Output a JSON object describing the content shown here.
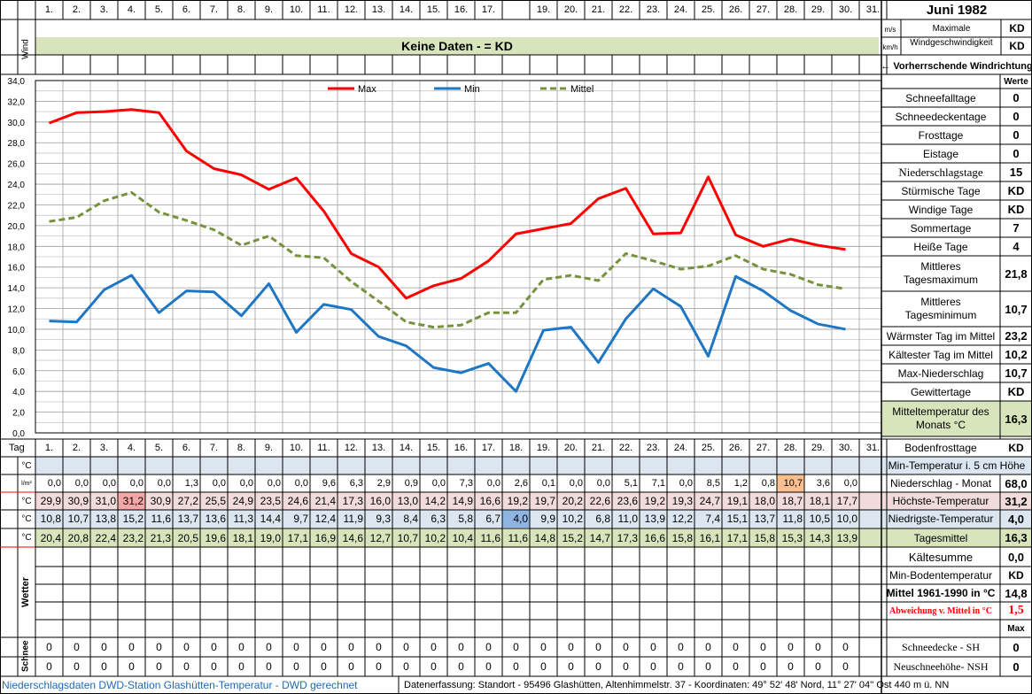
{
  "days_header": [
    "1.",
    "2.",
    "3.",
    "4.",
    "5.",
    "6.",
    "7.",
    "8.",
    "9.",
    "10.",
    "11.",
    "12.",
    "13.",
    "14.",
    "15.",
    "16.",
    "17.",
    "",
    "19.",
    "20.",
    "21.",
    "22.",
    "23.",
    "24.",
    "25.",
    "26.",
    "27.",
    "28.",
    "29.",
    "30.",
    "31."
  ],
  "days_row": [
    "1.",
    "2.",
    "3.",
    "4.",
    "5.",
    "6.",
    "7.",
    "8.",
    "9.",
    "10.",
    "11.",
    "12.",
    "13.",
    "14.",
    "15.",
    "16.",
    "17.",
    "18.",
    "19.",
    "20.",
    "21.",
    "22.",
    "23.",
    "24.",
    "25.",
    "26.",
    "27.",
    "28.",
    "29.",
    "30.",
    "31."
  ],
  "month_title": "Juni 1982",
  "wind": {
    "side_label": "Wind",
    "unit_ms": "m/s",
    "unit_kmh": "km/h",
    "banner": "Keine Daten -  = KD",
    "max_label_1": "Maximale",
    "max_label_2": "Windgeschwindigkeit",
    "max_ms": "KD",
    "max_kmh": "KD",
    "direction_label": "← Vorherrschende Windrichtung"
  },
  "stats_header": "Werte",
  "stats": [
    {
      "label": "Schneefalltage",
      "value": "0"
    },
    {
      "label": "Schneedeckentage",
      "value": "0"
    },
    {
      "label": "Frosttage",
      "value": "0"
    },
    {
      "label": "Eistage",
      "value": "0"
    },
    {
      "label": "Niederschlagstage",
      "value": "15"
    },
    {
      "label": "Stürmische Tage",
      "value": "KD"
    },
    {
      "label": "Windige Tage",
      "value": "KD"
    },
    {
      "label": "Sommertage",
      "value": "7"
    },
    {
      "label": "Heiße Tage",
      "value": "4"
    },
    {
      "label": "Mittleres Tagesmaximum",
      "label_1": "Mittleres",
      "label_2": "Tagesmaximum",
      "value": "21,8"
    },
    {
      "label": "Mittleres Tagesminimum",
      "label_1": "Mittleres",
      "label_2": "Tagesminimum",
      "value": "10,7"
    },
    {
      "label": "Wärmster Tag im Mittel",
      "value": "23,2"
    },
    {
      "label": "Kältester Tag im Mittel",
      "value": "10,2"
    },
    {
      "label": "Max-Niederschlag",
      "value": "10,7"
    },
    {
      "label": "Gewittertage",
      "value": "KD"
    },
    {
      "label": "Mitteltemperatur des Monats °C",
      "label_1": "Mitteltemperatur des",
      "label_2": "Monats °C",
      "value": "16,3"
    }
  ],
  "row_labels": {
    "tag": "Tag",
    "soil_unit": "°C",
    "precip_unit": "l/m²",
    "max_unit": "°C",
    "min_unit": "°C",
    "mean_unit": "°C",
    "weather": "Wetter",
    "snow": "Schnee"
  },
  "right_rows": {
    "bodenfrost": {
      "label": "Bodenfrosttage",
      "value": "KD"
    },
    "min5cm": {
      "label": "Min-Temperatur i. 5 cm Höhe"
    },
    "precip": {
      "label": "Niederschlag - Monat",
      "value": "68,0"
    },
    "max": {
      "label": "Höchste-Temperatur",
      "value": "31,2"
    },
    "min": {
      "label": "Niedrigste-Temperatur",
      "value": "4,0"
    },
    "mean": {
      "label": "Tagesmittel",
      "value": "16,3"
    },
    "kaelte": {
      "label": "Kältesumme",
      "value": "0,0"
    },
    "minboden": {
      "label": "Min-Bodentemperatur",
      "value": "KD"
    },
    "mittel6190": {
      "label": "Mittel 1961-1990 in °C",
      "value": "14,8"
    },
    "abweichung": {
      "label": "Abweichung v. Mittel in °C",
      "value": "1,5"
    },
    "max_label": "Max",
    "schneedecke": {
      "label": "Schneedecke -   SH",
      "value": "0"
    },
    "neuschnee": {
      "label": "Neuschneehöhe- NSH",
      "value": "0"
    }
  },
  "table": {
    "precip": [
      "0,0",
      "0,0",
      "0,0",
      "0,0",
      "0,0",
      "1,3",
      "0,0",
      "0,0",
      "0,0",
      "0,0",
      "9,6",
      "6,3",
      "2,9",
      "0,9",
      "0,0",
      "7,3",
      "0,0",
      "2,6",
      "0,1",
      "0,0",
      "0,0",
      "5,1",
      "7,1",
      "0,0",
      "8,5",
      "1,2",
      "0,8",
      "10,7",
      "3,6",
      "0,0",
      ""
    ],
    "max": [
      "29,9",
      "30,9",
      "31,0",
      "31,2",
      "30,9",
      "27,2",
      "25,5",
      "24,9",
      "23,5",
      "24,6",
      "21,4",
      "17,3",
      "16,0",
      "13,0",
      "14,2",
      "14,9",
      "16,6",
      "19,2",
      "19,7",
      "20,2",
      "22,6",
      "23,6",
      "19,2",
      "19,3",
      "24,7",
      "19,1",
      "18,0",
      "18,7",
      "18,1",
      "17,7",
      ""
    ],
    "min": [
      "10,8",
      "10,7",
      "13,8",
      "15,2",
      "11,6",
      "13,7",
      "13,6",
      "11,3",
      "14,4",
      "9,7",
      "12,4",
      "11,9",
      "9,3",
      "8,4",
      "6,3",
      "5,8",
      "6,7",
      "4,0",
      "9,9",
      "10,2",
      "6,8",
      "11,0",
      "13,9",
      "12,2",
      "7,4",
      "15,1",
      "13,7",
      "11,8",
      "10,5",
      "10,0",
      ""
    ],
    "mean": [
      "20,4",
      "20,8",
      "22,4",
      "23,2",
      "21,3",
      "20,5",
      "19,6",
      "18,1",
      "19,0",
      "17,1",
      "16,9",
      "14,6",
      "12,7",
      "10,7",
      "10,2",
      "10,4",
      "11,6",
      "11,6",
      "14,8",
      "15,2",
      "14,7",
      "17,3",
      "16,6",
      "15,8",
      "16,1",
      "17,1",
      "15,8",
      "15,3",
      "14,3",
      "13,9",
      ""
    ],
    "snow1": [
      "0",
      "0",
      "0",
      "0",
      "0",
      "0",
      "0",
      "0",
      "0",
      "0",
      "0",
      "0",
      "0",
      "0",
      "0",
      "0",
      "0",
      "0",
      "0",
      "0",
      "0",
      "0",
      "0",
      "0",
      "0",
      "0",
      "0",
      "0",
      "0",
      "0",
      ""
    ],
    "snow2": [
      "0",
      "0",
      "0",
      "0",
      "0",
      "0",
      "0",
      "0",
      "0",
      "0",
      "0",
      "0",
      "0",
      "0",
      "0",
      "0",
      "0",
      "0",
      "0",
      "0",
      "0",
      "0",
      "0",
      "0",
      "0",
      "0",
      "0",
      "0",
      "0",
      "0",
      ""
    ]
  },
  "chart_data": {
    "type": "line",
    "x": [
      1,
      2,
      3,
      4,
      5,
      6,
      7,
      8,
      9,
      10,
      11,
      12,
      13,
      14,
      15,
      16,
      17,
      18,
      19,
      20,
      21,
      22,
      23,
      24,
      25,
      26,
      27,
      28,
      29,
      30
    ],
    "series": [
      {
        "name": "Max",
        "color": "#ff0000",
        "style": "solid",
        "values": [
          29.9,
          30.9,
          31.0,
          31.2,
          30.9,
          27.2,
          25.5,
          24.9,
          23.5,
          24.6,
          21.4,
          17.3,
          16.0,
          13.0,
          14.2,
          14.9,
          16.6,
          19.2,
          19.7,
          20.2,
          22.6,
          23.6,
          19.2,
          19.3,
          24.7,
          19.1,
          18.0,
          18.7,
          18.1,
          17.7
        ]
      },
      {
        "name": "Min",
        "color": "#1f77c4",
        "style": "solid",
        "values": [
          10.8,
          10.7,
          13.8,
          15.2,
          11.6,
          13.7,
          13.6,
          11.3,
          14.4,
          9.7,
          12.4,
          11.9,
          9.3,
          8.4,
          6.3,
          5.8,
          6.7,
          4.0,
          9.9,
          10.2,
          6.8,
          11.0,
          13.9,
          12.2,
          7.4,
          15.1,
          13.7,
          11.8,
          10.5,
          10.0
        ]
      },
      {
        "name": "Mittel",
        "color": "#76923c",
        "style": "dashed",
        "values": [
          20.4,
          20.8,
          22.4,
          23.2,
          21.3,
          20.5,
          19.6,
          18.1,
          19.0,
          17.1,
          16.9,
          14.6,
          12.7,
          10.7,
          10.2,
          10.4,
          11.6,
          11.6,
          14.8,
          15.2,
          14.7,
          17.3,
          16.6,
          15.8,
          16.1,
          17.1,
          15.8,
          15.3,
          14.3,
          13.9
        ]
      }
    ],
    "yticks": [
      "34,0",
      "32,0",
      "30,0",
      "28,0",
      "26,0",
      "24,0",
      "22,0",
      "20,0",
      "18,0",
      "16,0",
      "14,0",
      "12,0",
      "10,0",
      "8,0",
      "6,0",
      "4,0",
      "2,0",
      "0,0"
    ],
    "ylim": [
      0,
      34
    ],
    "grid": true,
    "legend": "top-center"
  },
  "footer": {
    "left": "Niederschlagsdaten DWD-Station Glashütten-Temperatur -  DWD gerechnet",
    "right": "Datenerfassung: Standort -  95496  Glashütten, Altenhimmelstr. 37 - Koordinaten:  49° 52' 48' Nord,   11° 27' 04'' Ost   440 m ü. NN"
  },
  "colors": {
    "green_band": "#d8e4bc",
    "blue_band": "#dce6f1",
    "pink_band": "#f2dcdb",
    "highlight_max": "#f4a7a6",
    "highlight_min": "#8db4e2",
    "highlight_precip": "#fabf8f",
    "max_line": "#ff0000",
    "min_line": "#1f77c4",
    "mean_line": "#76923c"
  }
}
